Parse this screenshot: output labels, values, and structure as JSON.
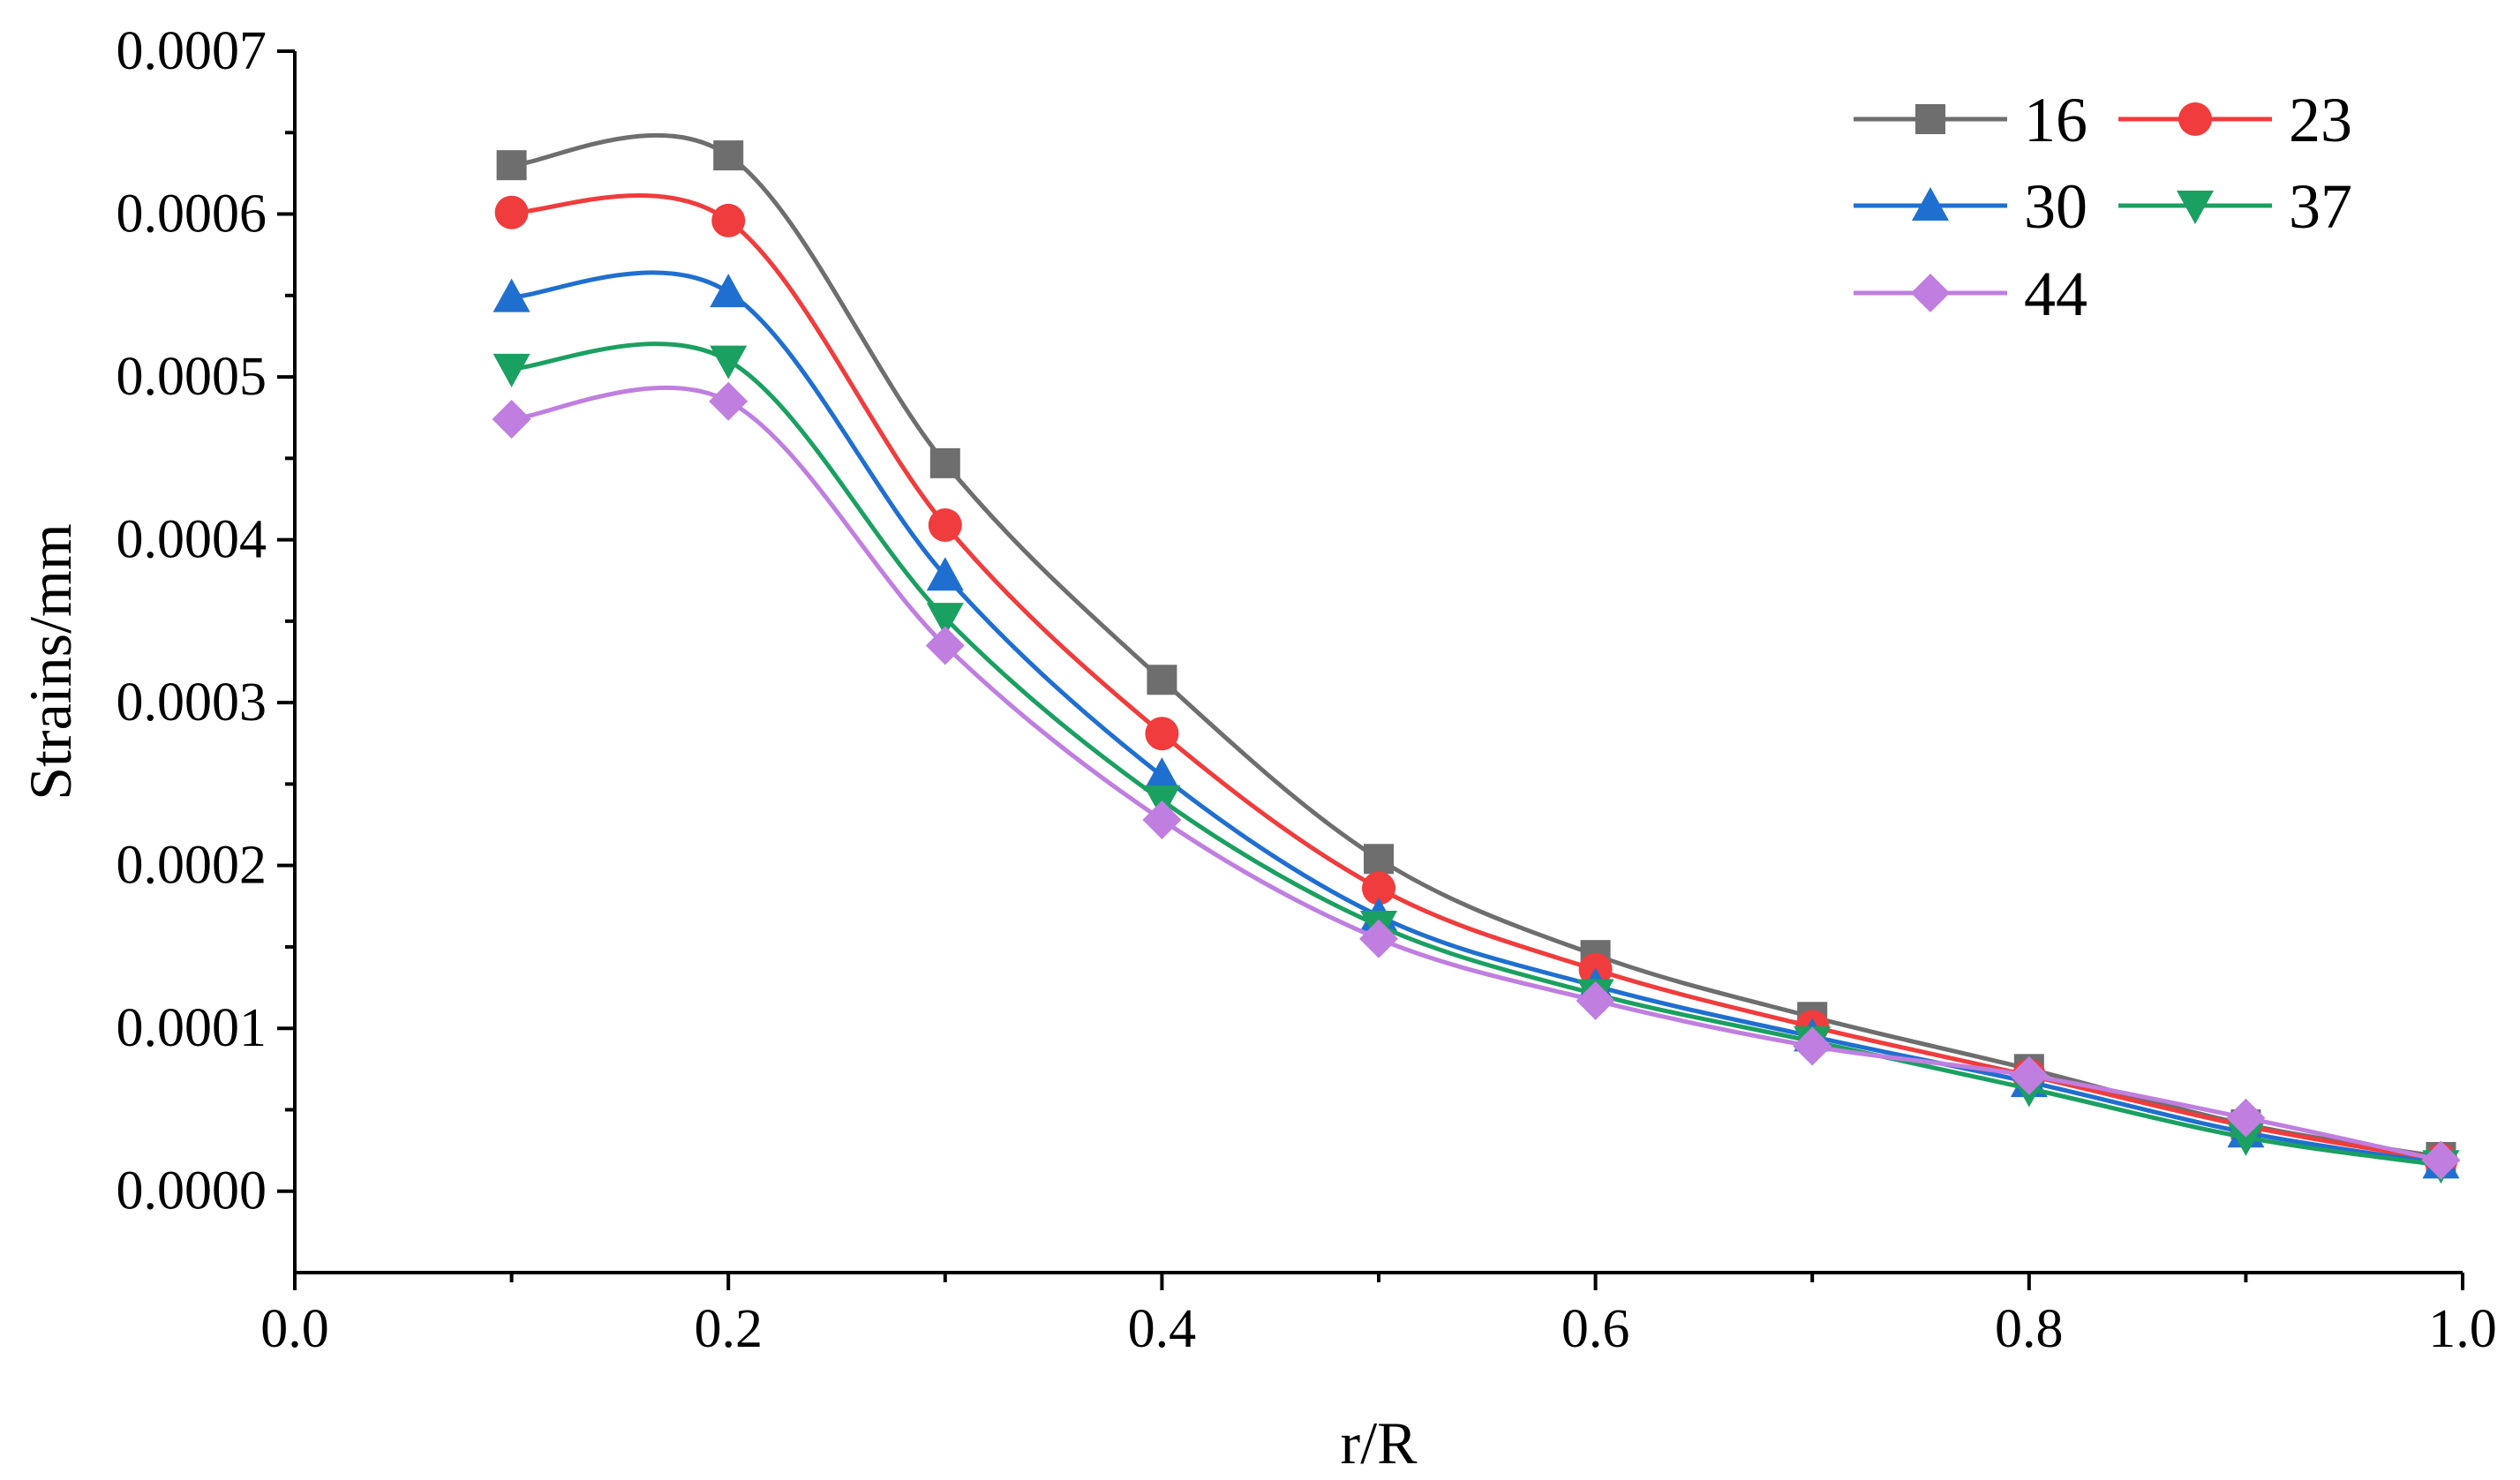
{
  "chart_data": {
    "type": "line",
    "title": "",
    "xlabel": "r/R",
    "ylabel": "Strains/mm",
    "xlim": [
      0.0,
      1.0
    ],
    "ylim": [
      -5e-05,
      0.0007
    ],
    "x_ticks": [
      0.0,
      0.2,
      0.4,
      0.6,
      0.8,
      1.0
    ],
    "x_tick_labels": [
      "0.0",
      "0.2",
      "0.4",
      "0.6",
      "0.8",
      "1.0"
    ],
    "y_ticks": [
      0.0,
      0.0001,
      0.0002,
      0.0003,
      0.0004,
      0.0005,
      0.0006,
      0.0007
    ],
    "y_tick_labels": [
      "0.0000",
      "0.0001",
      "0.0002",
      "0.0003",
      "0.0004",
      "0.0005",
      "0.0006",
      "0.0007"
    ],
    "grid": false,
    "legend_position": "top-right",
    "x": [
      0.1,
      0.2,
      0.3,
      0.4,
      0.5,
      0.6,
      0.7,
      0.8,
      0.9,
      0.99
    ],
    "series": [
      {
        "name": "16",
        "color": "#6e6e6e",
        "marker": "square",
        "values": [
          0.00063,
          0.000636,
          0.000447,
          0.000314,
          0.000204,
          0.000145,
          0.000107,
          7.5e-05,
          4.1e-05,
          2.1e-05
        ]
      },
      {
        "name": "23",
        "color": "#f03c3c",
        "marker": "circle",
        "values": [
          0.000601,
          0.000596,
          0.000409,
          0.000281,
          0.000186,
          0.000136,
          0.000101,
          7.1e-05,
          4e-05,
          1.9e-05
        ]
      },
      {
        "name": "30",
        "color": "#1f6fd0",
        "marker": "triangle-up",
        "values": [
          0.000549,
          0.000552,
          0.000378,
          0.000255,
          0.000169,
          0.000126,
          9.5e-05,
          6.7e-05,
          3.6e-05,
          1.7e-05
        ]
      },
      {
        "name": "37",
        "color": "#1aa060",
        "marker": "triangle-down",
        "values": [
          0.000505,
          0.00051,
          0.000352,
          0.00024,
          0.000163,
          0.000121,
          9.2e-05,
          6.3e-05,
          3.3e-05,
          1.6e-05
        ]
      },
      {
        "name": "44",
        "color": "#c07ee0",
        "marker": "diamond",
        "values": [
          0.000474,
          0.000485,
          0.000335,
          0.000228,
          0.000155,
          0.000117,
          8.9e-05,
          7.1e-05,
          4.5e-05,
          1.9e-05
        ]
      }
    ]
  }
}
